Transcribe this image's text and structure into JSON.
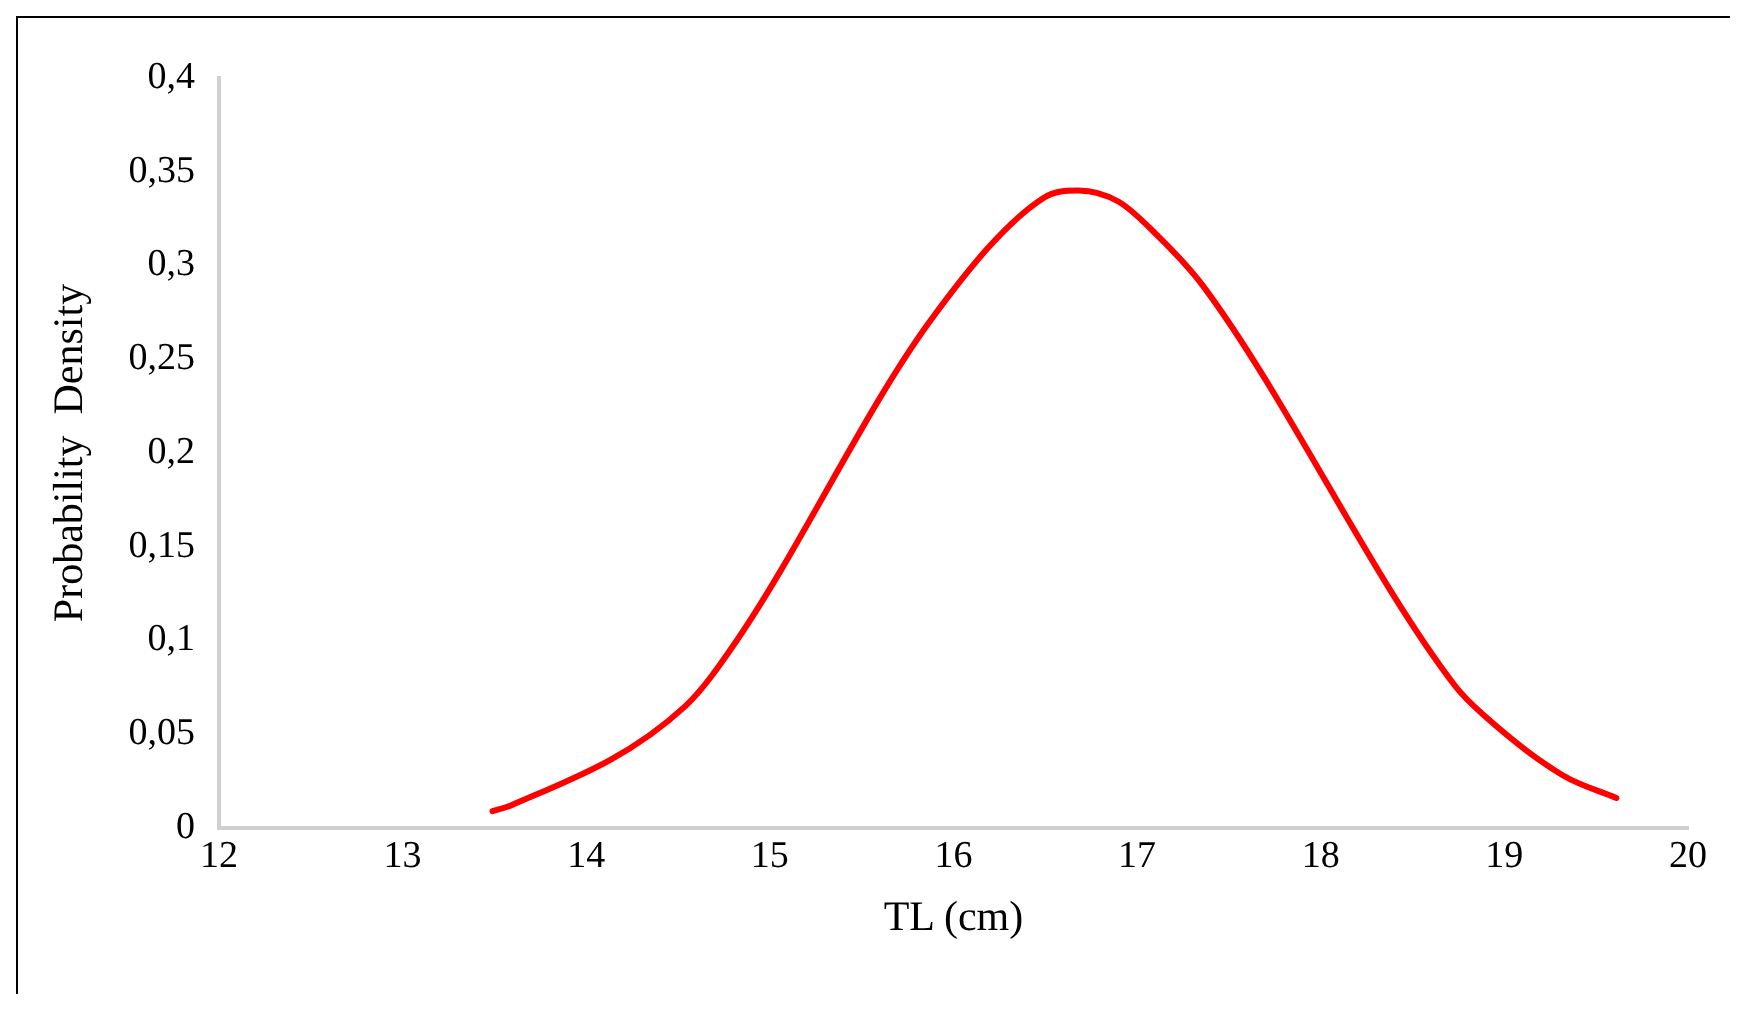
{
  "chart_data": {
    "type": "line",
    "xlabel": "TL (cm)",
    "ylabel": "Probability  Density",
    "x": [
      13.49,
      13.59,
      14.54,
      14.82,
      15.87,
      16.49,
      16.68,
      16.9,
      17.09,
      17.36,
      18.73,
      18.89,
      19.32,
      19.61
    ],
    "series": [
      {
        "color": "#ff0000",
        "values": [
          0.009,
          0.012,
          0.065,
          0.1,
          0.27,
          0.336,
          0.34,
          0.334,
          0.318,
          0.289,
          0.076,
          0.06,
          0.028,
          0.016
        ]
      }
    ],
    "xlim": [
      12,
      20
    ],
    "xticks": [
      12,
      13,
      14,
      15,
      16,
      17,
      18,
      19,
      20
    ],
    "ylim": [
      0,
      0.4
    ],
    "yticks": [
      0,
      {
        "value": 0.05,
        "label": "0,05"
      },
      {
        "value": 0.1,
        "label": "0,1"
      },
      {
        "value": 0.15,
        "label": "0,15"
      },
      {
        "value": 0.2,
        "label": "0,2"
      },
      {
        "value": 0.25,
        "label": "0,25"
      },
      {
        "value": 0.3,
        "label": "0,3"
      },
      {
        "value": 0.35,
        "label": "0,35"
      },
      {
        "value": 0.4,
        "label": "0,4"
      }
    ],
    "grid": false,
    "legend": false,
    "marker": "none",
    "line_style": "solid"
  }
}
